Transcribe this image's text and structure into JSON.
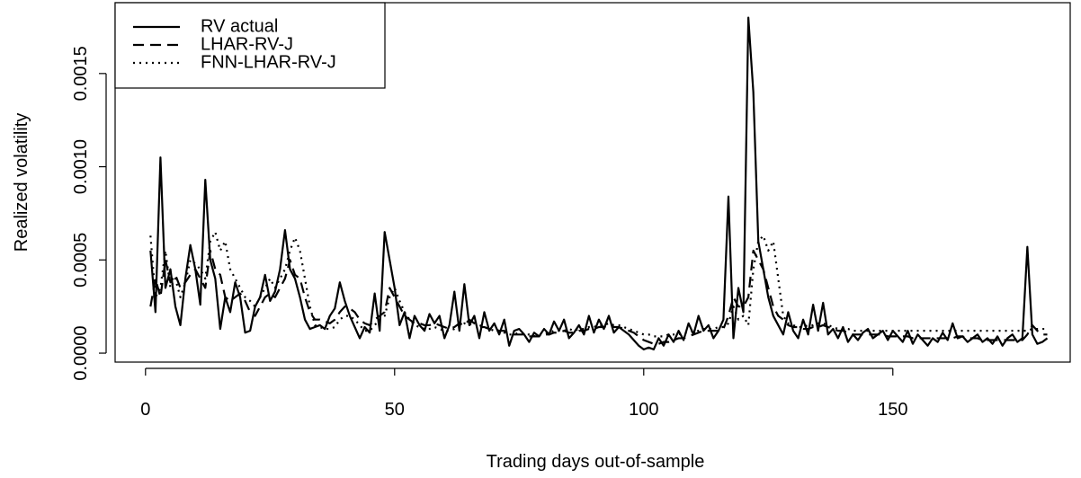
{
  "chart_data": {
    "type": "line",
    "xlabel": "Trading days out-of-sample",
    "ylabel": "Realized volatility",
    "x": [
      1,
      2,
      3,
      4,
      5,
      6,
      7,
      8,
      9,
      10,
      11,
      12,
      13,
      14,
      15,
      16,
      17,
      18,
      19,
      20,
      21,
      22,
      23,
      24,
      25,
      26,
      27,
      28,
      29,
      30,
      31,
      32,
      33,
      34,
      35,
      36,
      37,
      38,
      39,
      40,
      41,
      42,
      43,
      44,
      45,
      46,
      47,
      48,
      49,
      50,
      51,
      52,
      53,
      54,
      55,
      56,
      57,
      58,
      59,
      60,
      61,
      62,
      63,
      64,
      65,
      66,
      67,
      68,
      69,
      70,
      71,
      72,
      73,
      74,
      75,
      76,
      77,
      78,
      79,
      80,
      81,
      82,
      83,
      84,
      85,
      86,
      87,
      88,
      89,
      90,
      91,
      92,
      93,
      94,
      95,
      96,
      97,
      98,
      99,
      100,
      101,
      102,
      103,
      104,
      105,
      106,
      107,
      108,
      109,
      110,
      111,
      112,
      113,
      114,
      115,
      116,
      117,
      118,
      119,
      120,
      121,
      122,
      123,
      124,
      125,
      126,
      127,
      128,
      129,
      130,
      131,
      132,
      133,
      134,
      135,
      136,
      137,
      138,
      139,
      140,
      141,
      142,
      143,
      144,
      145,
      146,
      147,
      148,
      149,
      150,
      151,
      152,
      153,
      154,
      155,
      156,
      157,
      158,
      159,
      160,
      161,
      162,
      163,
      164,
      165,
      166,
      167,
      168,
      169,
      170,
      171,
      172,
      173,
      174,
      175,
      176,
      177,
      178,
      179,
      180,
      181
    ],
    "series": [
      {
        "name": "RV actual",
        "color": "#000000",
        "linestyle": "solid",
        "values": [
          0.00055,
          0.00022,
          0.00105,
          0.00035,
          0.00045,
          0.00025,
          0.00015,
          0.0004,
          0.00058,
          0.00045,
          0.00026,
          0.00093,
          0.0005,
          0.0004,
          0.00013,
          0.0003,
          0.00022,
          0.00038,
          0.0003,
          0.00011,
          0.00012,
          0.00025,
          0.0003,
          0.00042,
          0.00028,
          0.00033,
          0.00045,
          0.00066,
          0.00045,
          0.0004,
          0.0003,
          0.00018,
          0.00013,
          0.00014,
          0.00015,
          0.00013,
          0.0002,
          0.00024,
          0.00038,
          0.00028,
          0.0002,
          0.00014,
          8e-05,
          0.00014,
          0.00011,
          0.00032,
          0.00012,
          0.00065,
          0.0005,
          0.00035,
          0.00015,
          0.00022,
          8e-05,
          0.0002,
          0.00015,
          0.00012,
          0.00021,
          0.00016,
          0.0002,
          8e-05,
          0.00015,
          0.00033,
          0.00012,
          0.00037,
          0.00015,
          0.0002,
          8e-05,
          0.00022,
          0.00012,
          0.00016,
          0.0001,
          0.00018,
          4e-05,
          0.00012,
          0.00013,
          0.0001,
          6e-05,
          0.00011,
          9e-05,
          0.00013,
          0.0001,
          0.00017,
          0.00012,
          0.00018,
          8e-05,
          0.00011,
          0.00015,
          0.0001,
          0.0002,
          0.00011,
          0.00018,
          0.00013,
          0.0002,
          0.00011,
          0.00014,
          0.00012,
          0.0001,
          7e-05,
          4e-05,
          2e-05,
          3e-05,
          2e-05,
          8e-05,
          4e-05,
          0.0001,
          6e-05,
          0.00012,
          7e-05,
          0.00016,
          0.0001,
          0.0002,
          0.00012,
          0.00015,
          8e-05,
          0.00012,
          0.00018,
          0.00084,
          8e-05,
          0.00035,
          0.00022,
          0.0018,
          0.0014,
          0.0006,
          0.00045,
          0.0003,
          0.0002,
          0.00015,
          0.0001,
          0.00022,
          0.00012,
          8e-05,
          0.00018,
          0.0001,
          0.00026,
          0.00012,
          0.00027,
          0.0001,
          0.00013,
          8e-05,
          0.00014,
          6e-05,
          0.0001,
          7e-05,
          0.00011,
          0.00013,
          8e-05,
          0.0001,
          0.00012,
          7e-05,
          0.00012,
          9e-05,
          6e-05,
          0.00012,
          5e-05,
          0.0001,
          7e-05,
          4e-05,
          8e-05,
          6e-05,
          0.00011,
          7e-05,
          0.00016,
          8e-05,
          9e-05,
          6e-05,
          8e-05,
          0.0001,
          6e-05,
          8e-05,
          5e-05,
          9e-05,
          4e-05,
          8e-05,
          0.0001,
          6e-05,
          8e-05,
          0.00057,
          0.0001,
          5e-05,
          6e-05,
          8e-05
        ]
      },
      {
        "name": "LHAR-RV-J",
        "color": "#000000",
        "linestyle": "dashed",
        "values": [
          0.00025,
          0.0004,
          0.0003,
          0.0005,
          0.00038,
          0.00042,
          0.00035,
          0.00038,
          0.00042,
          0.00045,
          0.0004,
          0.00035,
          0.00055,
          0.00045,
          0.00042,
          0.0003,
          0.00028,
          0.0003,
          0.00032,
          0.00028,
          0.00022,
          0.0002,
          0.00025,
          0.0003,
          0.00032,
          0.0003,
          0.00035,
          0.0004,
          0.0005,
          0.00042,
          0.0004,
          0.0003,
          0.00022,
          0.00018,
          0.00018,
          0.00017,
          0.00016,
          0.00018,
          0.00022,
          0.00025,
          0.00024,
          0.00022,
          0.00018,
          0.00016,
          0.00015,
          0.00018,
          0.0002,
          0.00022,
          0.00035,
          0.0003,
          0.00025,
          0.0002,
          0.00018,
          0.00016,
          0.00016,
          0.00015,
          0.00015,
          0.00016,
          0.00015,
          0.00014,
          0.00013,
          0.00014,
          0.00016,
          0.00015,
          0.00018,
          0.00016,
          0.00014,
          0.00014,
          0.00013,
          0.00013,
          0.00012,
          0.00012,
          0.0001,
          0.0001,
          0.0001,
          0.0001,
          9e-05,
          9e-05,
          9e-05,
          0.0001,
          0.0001,
          0.00011,
          0.00011,
          0.00012,
          0.00011,
          0.00011,
          0.00012,
          0.00012,
          0.00013,
          0.00013,
          0.00014,
          0.00014,
          0.00015,
          0.00014,
          0.00014,
          0.00013,
          0.00012,
          0.00011,
          9e-05,
          7e-05,
          6e-05,
          5e-05,
          5e-05,
          6e-05,
          6e-05,
          7e-05,
          8e-05,
          8e-05,
          9e-05,
          0.0001,
          0.00011,
          0.00012,
          0.00012,
          0.00012,
          0.00012,
          0.00013,
          0.0002,
          0.0003,
          0.00025,
          0.00025,
          0.0003,
          0.00055,
          0.0005,
          0.00045,
          0.00035,
          0.00025,
          0.0002,
          0.00018,
          0.00015,
          0.00014,
          0.00014,
          0.00013,
          0.00013,
          0.00014,
          0.00014,
          0.00015,
          0.00014,
          0.00013,
          0.00012,
          0.00012,
          0.00011,
          0.0001,
          0.0001,
          0.0001,
          0.0001,
          0.0001,
          0.0001,
          0.0001,
          9e-05,
          9e-05,
          9e-05,
          9e-05,
          9e-05,
          8e-05,
          8e-05,
          8e-05,
          8e-05,
          8e-05,
          8e-05,
          8e-05,
          8e-05,
          8e-05,
          9e-05,
          9e-05,
          8e-05,
          8e-05,
          8e-05,
          7e-05,
          7e-05,
          7e-05,
          7e-05,
          7e-05,
          7e-05,
          7e-05,
          7e-05,
          7e-05,
          0.0001,
          0.00015,
          0.00012,
          0.0001,
          0.0001
        ]
      },
      {
        "name": "FNN-LHAR-RV-J",
        "color": "#000000",
        "linestyle": "dotted",
        "values": [
          0.00063,
          0.0003,
          0.00035,
          0.00055,
          0.00035,
          0.0004,
          0.0003,
          0.00038,
          0.0005,
          0.00048,
          0.00045,
          0.0004,
          0.0006,
          0.00065,
          0.00055,
          0.0006,
          0.00045,
          0.0004,
          0.00035,
          0.0003,
          0.00028,
          0.00025,
          0.0003,
          0.00035,
          0.0004,
          0.00035,
          0.0004,
          0.00045,
          0.00055,
          0.00062,
          0.00055,
          0.0004,
          0.00025,
          0.00015,
          0.00014,
          0.00013,
          0.00013,
          0.00014,
          0.00018,
          0.0002,
          0.0002,
          0.00018,
          0.00015,
          0.00012,
          0.00012,
          0.00015,
          0.00018,
          0.0002,
          0.0003,
          0.00035,
          0.00028,
          0.00022,
          0.00018,
          0.00015,
          0.00014,
          0.00013,
          0.00013,
          0.00014,
          0.00013,
          0.00012,
          0.00012,
          0.00013,
          0.00015,
          0.00016,
          0.00015,
          0.00017,
          0.00015,
          0.00014,
          0.00013,
          0.00012,
          0.00012,
          0.00011,
          0.0001,
          0.0001,
          0.00011,
          0.0001,
          0.0001,
          9e-05,
          0.0001,
          0.0001,
          0.00011,
          0.00012,
          0.00012,
          0.00012,
          0.00013,
          0.00012,
          0.00013,
          0.00013,
          0.00014,
          0.00014,
          0.00015,
          0.00015,
          0.00016,
          0.00015,
          0.00015,
          0.00014,
          0.00013,
          0.00012,
          0.00011,
          0.0001,
          0.0001,
          9e-05,
          9e-05,
          9e-05,
          0.0001,
          0.0001,
          0.0001,
          0.00011,
          0.00011,
          0.00012,
          0.00012,
          0.00013,
          0.00013,
          0.00013,
          0.00014,
          0.00014,
          0.00016,
          0.00025,
          0.00018,
          0.0002,
          0.00015,
          0.00045,
          0.0006,
          0.00063,
          0.00055,
          0.0006,
          0.0004,
          0.0002,
          0.00016,
          0.00015,
          0.00014,
          0.00014,
          0.00015,
          0.00015,
          0.00016,
          0.00016,
          0.00015,
          0.00014,
          0.00013,
          0.00013,
          0.00013,
          0.00012,
          0.00012,
          0.00012,
          0.00012,
          0.00012,
          0.00012,
          0.00012,
          0.00012,
          0.00012,
          0.00012,
          0.00012,
          0.00012,
          0.00012,
          0.00012,
          0.00012,
          0.00012,
          0.00012,
          0.00012,
          0.00012,
          0.00012,
          0.00012,
          0.00012,
          0.00012,
          0.00012,
          0.00012,
          0.00012,
          0.00012,
          0.00012,
          0.00012,
          0.00012,
          0.00012,
          0.00012,
          0.00012,
          0.00012,
          0.00012,
          0.00012,
          0.00013,
          0.00013,
          0.00013,
          0.00013
        ]
      }
    ],
    "xlim": [
      -6.1,
      185.6
    ],
    "ylim": [
      -4.8e-05,
      0.00188
    ],
    "xticks": [
      0,
      50,
      100,
      150
    ],
    "yticks": [
      {
        "value": 0,
        "label": "0.0000"
      },
      {
        "value": 0.0005,
        "label": "0.0005"
      },
      {
        "value": 0.001,
        "label": "0.0010"
      },
      {
        "value": 0.0015,
        "label": "0.0015"
      }
    ],
    "legend": "top-left"
  }
}
